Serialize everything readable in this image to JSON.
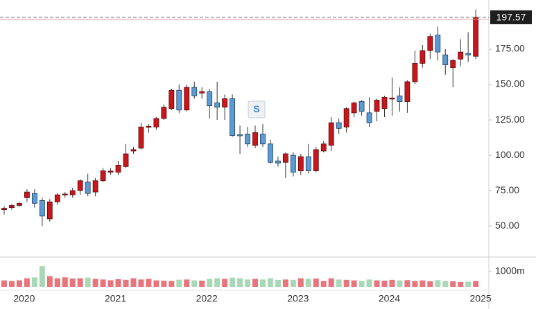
{
  "chart_data": {
    "type": "candlestick",
    "categories": [
      null,
      null,
      null,
      "2020",
      null,
      null,
      null,
      null,
      null,
      null,
      null,
      null,
      null,
      null,
      null,
      "2021",
      null,
      null,
      null,
      null,
      null,
      null,
      null,
      null,
      null,
      null,
      null,
      "2022",
      null,
      null,
      null,
      null,
      null,
      null,
      null,
      null,
      null,
      null,
      null,
      "2023",
      null,
      null,
      null,
      null,
      null,
      null,
      null,
      null,
      null,
      null,
      null,
      "2024",
      null,
      null,
      null,
      null,
      null,
      null,
      null,
      null,
      null,
      null,
      null,
      "2025"
    ],
    "open": [
      61.5,
      63,
      64.5,
      70,
      73,
      68,
      55,
      67,
      72,
      72,
      75,
      81,
      74,
      82,
      88,
      88,
      92,
      103,
      105,
      120,
      120,
      126,
      133,
      146,
      132,
      148,
      144,
      145,
      137,
      134,
      140,
      114.5,
      115,
      107,
      115,
      108,
      96,
      95,
      100,
      89,
      99,
      89,
      103,
      107,
      123,
      120,
      130,
      138,
      130,
      131,
      133,
      140,
      142,
      138,
      152,
      165,
      174,
      185,
      171,
      162,
      168,
      172,
      170,
      null
    ],
    "high": [
      64,
      65.5,
      67,
      76,
      76,
      70,
      69,
      73,
      74,
      77,
      83,
      87,
      84,
      91,
      91,
      96,
      108,
      106,
      123,
      122,
      127,
      136,
      147,
      150,
      150,
      152,
      148,
      147,
      152,
      143,
      143,
      121,
      120,
      121,
      122,
      111,
      99,
      102,
      102,
      101,
      108,
      106,
      110,
      127,
      126,
      134,
      138,
      139,
      141,
      140,
      142,
      155,
      148,
      153,
      174,
      178,
      186,
      191,
      175,
      168,
      182,
      187,
      203,
      null
    ],
    "low": [
      58,
      61.5,
      63.5,
      67,
      63,
      50,
      53,
      65,
      70,
      70,
      72,
      71,
      71,
      81,
      86,
      86,
      91,
      101,
      104,
      116,
      118,
      125,
      132,
      130,
      131,
      140,
      140,
      126,
      125,
      125,
      113,
      101,
      106,
      105,
      106,
      94,
      92,
      84,
      85,
      86,
      87,
      88,
      102,
      103,
      115,
      116,
      127,
      128,
      120,
      124,
      127,
      128,
      131,
      130,
      150,
      162,
      168,
      167,
      157,
      148,
      163,
      166,
      168,
      null
    ],
    "close": [
      62.5,
      64.5,
      66,
      74,
      66,
      57,
      67,
      72,
      72.6,
      75,
      82,
      73,
      82,
      89,
      88.8,
      93,
      101,
      104,
      120,
      120.5,
      126,
      134,
      146,
      132,
      148,
      142,
      145,
      135,
      134,
      140,
      114,
      114,
      108,
      116,
      108,
      95,
      94.5,
      101,
      88,
      99,
      89,
      104,
      108,
      123,
      119,
      133,
      137,
      131,
      123,
      139,
      141,
      140.5,
      138,
      152,
      165,
      174,
      184,
      173,
      164,
      167,
      173,
      171,
      197.57,
      null
    ],
    "ylim": [
      28.5,
      209.8
    ],
    "yticks": [
      {
        "value": 50,
        "label": "50.00"
      },
      {
        "value": 75,
        "label": "75.00"
      },
      {
        "value": 100,
        "label": "100.00"
      },
      {
        "value": 125,
        "label": "125.00"
      },
      {
        "value": 150,
        "label": "150.00"
      },
      {
        "value": 175,
        "label": "175.00"
      }
    ],
    "last_price": 197.57,
    "up_color": "#c8161d",
    "down_color": "#5b9bd5",
    "annotations": [
      {
        "text": "S"
      }
    ],
    "volume": {
      "values": [
        420,
        380,
        430,
        560,
        620,
        1350,
        700,
        560,
        620,
        540,
        560,
        600,
        520,
        480,
        430,
        500,
        460,
        560,
        480,
        520,
        420,
        400,
        380,
        470,
        480,
        420,
        400,
        520,
        560,
        520,
        600,
        560,
        480,
        520,
        480,
        560,
        450,
        480,
        460,
        560,
        520,
        540,
        380,
        560,
        480,
        460,
        420,
        380,
        480,
        420,
        400,
        460,
        420,
        440,
        380,
        420,
        360,
        440,
        380,
        360,
        320,
        340,
        380,
        null
      ],
      "ylim": [
        0,
        1900
      ],
      "yticks": [
        {
          "value": 1000,
          "label": "1000m"
        }
      ],
      "up_color": "#e8747c",
      "down_color": "#a8d8b6"
    }
  }
}
